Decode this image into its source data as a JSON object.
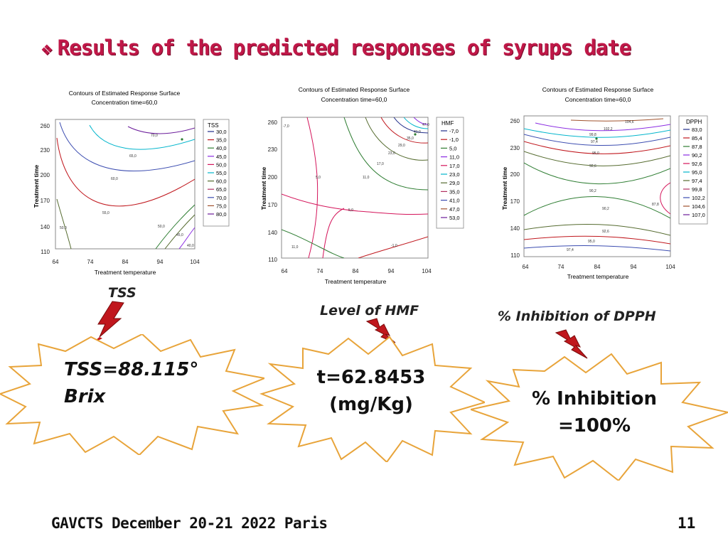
{
  "slide": {
    "title": "Results of the predicted responses of syrups date",
    "footer": "GAVCTS December 20-21 2022 Paris",
    "page_number": "11"
  },
  "labels": {
    "tss": "TSS",
    "hmf": "Level of HMF",
    "dpph": "% Inhibition of DPPH"
  },
  "results": {
    "tss_line1": "TSS=88.115°",
    "tss_line2": "Brix",
    "hmf_line1": "t=62.8453",
    "hmf_line2": "(mg/Kg)",
    "dpph_line1": "% Inhibition",
    "dpph_line2": "=100%"
  },
  "colors": {
    "title": "#c01848",
    "lightning": "#c0171d",
    "burst_stroke": "#e8a43a",
    "contour_palette": [
      "#1f2d8a",
      "#c0171d",
      "#2e7d32",
      "#8a2be2",
      "#d4145a",
      "#00b5cc",
      "#556b2f",
      "#b03060",
      "#3b4cb0",
      "#a0522d",
      "#6a1b9a",
      "#e01e5a",
      "#008b8b",
      "#4b0082",
      "#cc0066"
    ]
  },
  "chart_data": [
    {
      "type": "contour",
      "title": "Contours of Estimated Response Surface",
      "subtitle": "Concentration time=60,0",
      "xlabel": "Treatment temperature",
      "ylabel": "Treatment time",
      "x_ticks": [
        "64",
        "74",
        "84",
        "94",
        "104"
      ],
      "y_ticks": [
        "260",
        "230",
        "200",
        "170",
        "140",
        "110"
      ],
      "xlim": [
        64,
        104
      ],
      "ylim": [
        110,
        260
      ],
      "legend_title": "TSS",
      "legend": [
        "30,0",
        "35,0",
        "40,0",
        "45,0",
        "50,0",
        "55,0",
        "60,0",
        "65,0",
        "70,0",
        "75,0",
        "80,0"
      ],
      "contour_labels": [
        "70,0",
        "65,0",
        "60,0",
        "55,0",
        "50,0",
        "50,0",
        "45,0",
        "40,0"
      ]
    },
    {
      "type": "contour",
      "title": "Contours of Estimated Response Surface",
      "subtitle": "Concentration time=60,0",
      "xlabel": "Treatment temperature",
      "ylabel": "Treatment time",
      "x_ticks": [
        "64",
        "74",
        "84",
        "94",
        "104"
      ],
      "y_ticks": [
        "260",
        "230",
        "200",
        "170",
        "140",
        "110"
      ],
      "xlim": [
        64,
        104
      ],
      "ylim": [
        110,
        260
      ],
      "legend_title": "HMF",
      "legend": [
        "-7,0",
        "-1,0",
        "5,0",
        "11,0",
        "17,0",
        "23,0",
        "29,0",
        "35,0",
        "41,0",
        "47,0",
        "53,0"
      ],
      "contour_labels": [
        "-7,0",
        "5,0",
        "11,0",
        "5,0",
        "17,0",
        "23,0",
        "29,0",
        "35,0",
        "41,0",
        "47,0",
        "11,0",
        "-1,0"
      ]
    },
    {
      "type": "contour",
      "title": "Contours of Estimated Response Surface",
      "subtitle": "Concentration time=60,0",
      "xlabel": "Treatment temperature",
      "ylabel": "Treatment time",
      "x_ticks": [
        "64",
        "74",
        "84",
        "94",
        "104"
      ],
      "y_ticks": [
        "260",
        "230",
        "200",
        "170",
        "140",
        "110"
      ],
      "xlim": [
        64,
        104
      ],
      "ylim": [
        110,
        260
      ],
      "legend_title": "DPPH",
      "legend": [
        "83,0",
        "85,4",
        "87,8",
        "90,2",
        "92,6",
        "95,0",
        "97,4",
        "99,8",
        "102,2",
        "104,6",
        "107,0"
      ],
      "contour_labels": [
        "104,6",
        "102,2",
        "99,8",
        "97,4",
        "95,0",
        "92,6",
        "90,2",
        "90,2",
        "87,8",
        "92,6",
        "95,0",
        "97,4"
      ]
    }
  ]
}
